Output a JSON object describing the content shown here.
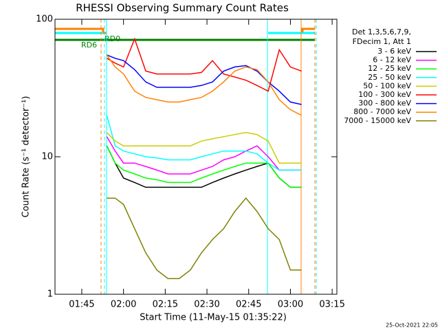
{
  "chart_data": {
    "type": "line",
    "title": "RHESSI Observing Summary Count Rates",
    "xlabel": "Start Time (11-May-15 01:35:22)",
    "ylabel": "Count Rate (s⁻¹ detector⁻¹)",
    "footer": "25-Oct-2021 22:05",
    "legend_title": [
      "Det 1,3,5,6,7,9,",
      "FDecim 1, Att 1"
    ],
    "annotations": [
      "RD6",
      "RD0"
    ],
    "log_y": true,
    "legend": "right",
    "xlim": [
      95.37,
      196.7
    ],
    "ylim": [
      1,
      100
    ],
    "yticks": [
      1,
      10,
      100
    ],
    "xticks": [
      {
        "value": 105,
        "label": "01:45"
      },
      {
        "value": 120,
        "label": "02:00"
      },
      {
        "value": 135,
        "label": "02:15"
      },
      {
        "value": 150,
        "label": "02:30"
      },
      {
        "value": 165,
        "label": "02:45"
      },
      {
        "value": 180,
        "label": "03:00"
      },
      {
        "value": 195,
        "label": "03:15"
      }
    ],
    "x": [
      114,
      117,
      120,
      124,
      128,
      132,
      136,
      140,
      144,
      148,
      152,
      156,
      160,
      164,
      168,
      172,
      176,
      180,
      184
    ],
    "series": [
      {
        "name": "3 - 6 keV",
        "color": "#000000",
        "values": [
          12,
          9,
          7,
          6.5,
          6,
          6,
          6,
          6,
          6,
          6,
          6.5,
          7,
          7.5,
          8,
          8.5,
          9,
          7,
          6,
          6
        ]
      },
      {
        "name": "6 - 12 keV",
        "color": "#ff00ff",
        "values": [
          14,
          11,
          9,
          9,
          8.5,
          8,
          7.5,
          7.5,
          7.5,
          8,
          8.5,
          9.5,
          10,
          11,
          12,
          10,
          8,
          8,
          8
        ]
      },
      {
        "name": "12 - 25 keV",
        "color": "#00ff00",
        "values": [
          12,
          9,
          8,
          7.5,
          7,
          6.8,
          6.5,
          6.5,
          6.5,
          7,
          7.5,
          8,
          8.5,
          9,
          9,
          9,
          7,
          6,
          6
        ]
      },
      {
        "name": "25 - 50 keV",
        "color": "#00ffff",
        "values": [
          20,
          12,
          11,
          10.5,
          10,
          9.8,
          9.5,
          9.5,
          9.5,
          10,
          10.5,
          11,
          11,
          11,
          10.5,
          9,
          8,
          8,
          8
        ]
      },
      {
        "name": "50 - 100 keV",
        "color": "#cccc00",
        "values": [
          15,
          13,
          12,
          12,
          12,
          12,
          12,
          12,
          12,
          13,
          13.5,
          14,
          14.5,
          15,
          14.5,
          13,
          9,
          9,
          9
        ]
      },
      {
        "name": "100 - 300 keV",
        "color": "#ff0000",
        "values": [
          52,
          48,
          45,
          72,
          42,
          40,
          40,
          40,
          40,
          41,
          50,
          40,
          38,
          36,
          33,
          30,
          60,
          45,
          42
        ]
      },
      {
        "name": "300 - 800 keV",
        "color": "#0000ff",
        "values": [
          55,
          52,
          50,
          43,
          35,
          32,
          32,
          32,
          32,
          33,
          35,
          42,
          45,
          46,
          42,
          35,
          30,
          25,
          24
        ]
      },
      {
        "name": "800 - 7000 keV",
        "color": "#ff8000",
        "values": [
          55,
          45,
          40,
          30,
          27,
          26,
          25,
          25,
          26,
          27,
          30,
          35,
          42,
          45,
          43,
          35,
          26,
          22,
          20
        ]
      },
      {
        "name": "7000 - 15000 keV",
        "color": "#808000",
        "values": [
          5,
          5,
          4.5,
          3,
          2,
          1.5,
          1.3,
          1.3,
          1.5,
          2,
          2.5,
          3,
          4,
          5,
          4,
          3,
          2.5,
          1.5,
          1.5
        ]
      }
    ]
  }
}
